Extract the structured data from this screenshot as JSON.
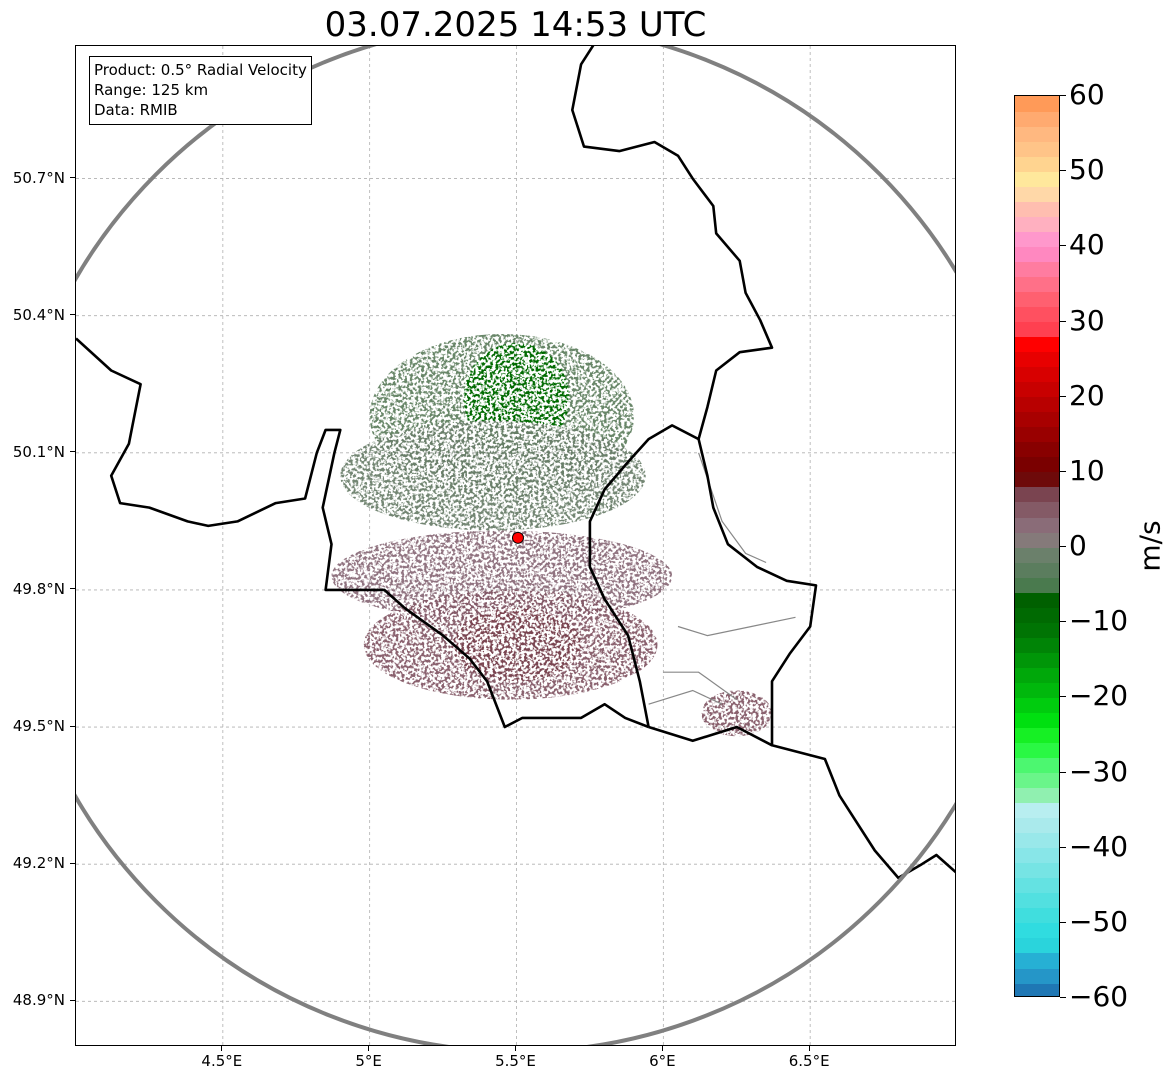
{
  "title": "03.07.2025 14:53 UTC",
  "info_box": {
    "product": "Product: 0.5° Radial Velocity",
    "range": "Range: 125 km",
    "data": "Data: RMIB"
  },
  "map": {
    "lon_range": [
      4.0,
      7.0
    ],
    "lat_range": [
      48.8,
      50.99
    ],
    "radar_site": {
      "lon": 5.505,
      "lat": 49.914
    },
    "range_ring_km": 125,
    "range_ring_color": "#808080",
    "site_marker_color": "#ff0000",
    "gridlines": true,
    "lat_ticks": [
      {
        "value": 50.7,
        "label": "50.7°N"
      },
      {
        "value": 50.4,
        "label": "50.4°N"
      },
      {
        "value": 50.1,
        "label": "50.1°N"
      },
      {
        "value": 49.8,
        "label": "49.8°N"
      },
      {
        "value": 49.5,
        "label": "49.5°N"
      },
      {
        "value": 49.2,
        "label": "49.2°N"
      },
      {
        "value": 48.9,
        "label": "48.9°N"
      }
    ],
    "lon_ticks": [
      {
        "value": 4.5,
        "label": "4.5°E"
      },
      {
        "value": 5.0,
        "label": "5°E"
      },
      {
        "value": 5.5,
        "label": "5.5°E"
      },
      {
        "value": 6.0,
        "label": "6°E"
      },
      {
        "value": 6.5,
        "label": "6.5°E"
      }
    ],
    "borders": [
      [
        [
          4.0,
          50.35
        ],
        [
          4.12,
          50.28
        ],
        [
          4.22,
          50.25
        ],
        [
          4.18,
          50.12
        ],
        [
          4.12,
          50.05
        ],
        [
          4.15,
          49.99
        ],
        [
          4.25,
          49.98
        ],
        [
          4.38,
          49.95
        ],
        [
          4.45,
          49.94
        ],
        [
          4.55,
          49.95
        ],
        [
          4.68,
          49.99
        ],
        [
          4.78,
          50.0
        ],
        [
          4.82,
          50.1
        ],
        [
          4.85,
          50.15
        ],
        [
          4.9,
          50.15
        ],
        [
          4.88,
          50.1
        ],
        [
          4.84,
          49.98
        ],
        [
          4.87,
          49.9
        ],
        [
          4.85,
          49.8
        ],
        [
          4.95,
          49.8
        ],
        [
          5.05,
          49.8
        ],
        [
          5.12,
          49.76
        ],
        [
          5.25,
          49.7
        ],
        [
          5.34,
          49.65
        ],
        [
          5.4,
          49.6
        ],
        [
          5.46,
          49.5
        ],
        [
          5.52,
          49.52
        ],
        [
          5.6,
          49.52
        ],
        [
          5.72,
          49.52
        ],
        [
          5.8,
          49.55
        ],
        [
          5.87,
          49.52
        ],
        [
          5.95,
          49.5
        ]
      ],
      [
        [
          5.95,
          49.5
        ],
        [
          5.92,
          49.6
        ],
        [
          5.88,
          49.7
        ],
        [
          5.8,
          49.78
        ],
        [
          5.75,
          49.85
        ],
        [
          5.75,
          49.95
        ],
        [
          5.8,
          50.02
        ],
        [
          5.88,
          50.08
        ],
        [
          5.95,
          50.13
        ],
        [
          6.03,
          50.16
        ],
        [
          6.12,
          50.13
        ],
        [
          6.15,
          50.2
        ],
        [
          6.18,
          50.28
        ],
        [
          6.26,
          50.32
        ],
        [
          6.37,
          50.33
        ],
        [
          6.33,
          50.39
        ],
        [
          6.28,
          50.45
        ],
        [
          6.26,
          50.52
        ],
        [
          6.18,
          50.58
        ],
        [
          6.17,
          50.64
        ],
        [
          6.1,
          50.7
        ],
        [
          6.05,
          50.75
        ],
        [
          5.97,
          50.78
        ],
        [
          5.85,
          50.76
        ],
        [
          5.73,
          50.77
        ],
        [
          5.69,
          50.85
        ],
        [
          5.72,
          50.95
        ],
        [
          5.77,
          51.0
        ]
      ],
      [
        [
          6.12,
          50.13
        ],
        [
          6.15,
          50.05
        ],
        [
          6.17,
          49.98
        ],
        [
          6.22,
          49.9
        ],
        [
          6.32,
          49.85
        ],
        [
          6.42,
          49.82
        ],
        [
          6.52,
          49.81
        ],
        [
          6.5,
          49.72
        ],
        [
          6.43,
          49.66
        ],
        [
          6.37,
          49.6
        ],
        [
          6.37,
          49.46
        ],
        [
          6.55,
          49.43
        ],
        [
          6.6,
          49.35
        ],
        [
          6.72,
          49.23
        ],
        [
          6.8,
          49.17
        ],
        [
          6.88,
          49.2
        ],
        [
          6.93,
          49.22
        ],
        [
          7.0,
          49.18
        ]
      ],
      [
        [
          6.37,
          49.46
        ],
        [
          6.25,
          49.5
        ],
        [
          6.1,
          49.47
        ],
        [
          5.95,
          49.5
        ]
      ]
    ],
    "sub_borders": [
      [
        [
          6.12,
          50.1
        ],
        [
          6.2,
          49.95
        ],
        [
          6.28,
          49.88
        ],
        [
          6.35,
          49.86
        ]
      ],
      [
        [
          6.05,
          49.72
        ],
        [
          6.15,
          49.7
        ],
        [
          6.3,
          49.72
        ],
        [
          6.45,
          49.74
        ]
      ],
      [
        [
          6.0,
          49.62
        ],
        [
          6.12,
          49.62
        ],
        [
          6.25,
          49.56
        ]
      ],
      [
        [
          5.95,
          49.55
        ],
        [
          6.1,
          49.58
        ],
        [
          6.2,
          49.55
        ]
      ]
    ]
  },
  "colorbar": {
    "label": "m/s",
    "vmin": -60,
    "vmax": 60,
    "ticks": [
      "60",
      "50",
      "40",
      "30",
      "20",
      "10",
      "0",
      "−10",
      "−20",
      "−30",
      "−40",
      "−50",
      "−60"
    ],
    "tick_values": [
      60,
      50,
      40,
      30,
      20,
      10,
      0,
      -10,
      -20,
      -30,
      -40,
      -50,
      -60
    ],
    "colors": [
      {
        "from": -60,
        "to": -58,
        "color": "#1f77b4"
      },
      {
        "from": -58,
        "to": -56,
        "color": "#2596c8"
      },
      {
        "from": -56,
        "to": -54,
        "color": "#26b0d4"
      },
      {
        "from": -54,
        "to": -52,
        "color": "#2ad4dc"
      },
      {
        "from": -52,
        "to": -50,
        "color": "#30dce0"
      },
      {
        "from": -50,
        "to": -48,
        "color": "#40dede"
      },
      {
        "from": -48,
        "to": -46,
        "color": "#52e0e0"
      },
      {
        "from": -46,
        "to": -44,
        "color": "#64e2e2"
      },
      {
        "from": -44,
        "to": -42,
        "color": "#76e4e4"
      },
      {
        "from": -42,
        "to": -40,
        "color": "#88e6e8"
      },
      {
        "from": -40,
        "to": -38,
        "color": "#99e8ea"
      },
      {
        "from": -38,
        "to": -36,
        "color": "#aaeaec"
      },
      {
        "from": -36,
        "to": -34,
        "color": "#b8eef0"
      },
      {
        "from": -34,
        "to": -32,
        "color": "#90f0b0"
      },
      {
        "from": -32,
        "to": -30,
        "color": "#6af58a"
      },
      {
        "from": -30,
        "to": -28,
        "color": "#4cf770"
      },
      {
        "from": -28,
        "to": -26,
        "color": "#2af844"
      },
      {
        "from": -26,
        "to": -24,
        "color": "#16f024"
      },
      {
        "from": -24,
        "to": -22,
        "color": "#00e010"
      },
      {
        "from": -22,
        "to": -20,
        "color": "#00cc0e"
      },
      {
        "from": -20,
        "to": -18,
        "color": "#00b80c"
      },
      {
        "from": -18,
        "to": -16,
        "color": "#00a80a"
      },
      {
        "from": -16,
        "to": -14,
        "color": "#009608"
      },
      {
        "from": -14,
        "to": -12,
        "color": "#008406"
      },
      {
        "from": -12,
        "to": -10,
        "color": "#007404"
      },
      {
        "from": -10,
        "to": -8,
        "color": "#006a02"
      },
      {
        "from": -8,
        "to": -6,
        "color": "#006000"
      },
      {
        "from": -6,
        "to": -4,
        "color": "#4a7a4e"
      },
      {
        "from": -4,
        "to": -2,
        "color": "#5b7d5e"
      },
      {
        "from": -2,
        "to": 0,
        "color": "#6b806b"
      },
      {
        "from": 0,
        "to": 2,
        "color": "#857a7a"
      },
      {
        "from": 2,
        "to": 4,
        "color": "#8a6c78"
      },
      {
        "from": 4,
        "to": 6,
        "color": "#845a66"
      },
      {
        "from": 6,
        "to": 8,
        "color": "#7a4450"
      },
      {
        "from": 8,
        "to": 10,
        "color": "#6e0a0a"
      },
      {
        "from": 10,
        "to": 12,
        "color": "#7a0000"
      },
      {
        "from": 12,
        "to": 14,
        "color": "#880000"
      },
      {
        "from": 14,
        "to": 16,
        "color": "#990000"
      },
      {
        "from": 16,
        "to": 18,
        "color": "#a80000"
      },
      {
        "from": 18,
        "to": 20,
        "color": "#b80000"
      },
      {
        "from": 20,
        "to": 22,
        "color": "#c80000"
      },
      {
        "from": 22,
        "to": 24,
        "color": "#d80000"
      },
      {
        "from": 24,
        "to": 26,
        "color": "#e80000"
      },
      {
        "from": 26,
        "to": 28,
        "color": "#ff0000"
      },
      {
        "from": 28,
        "to": 30,
        "color": "#ff4050"
      },
      {
        "from": 30,
        "to": 32,
        "color": "#ff5060"
      },
      {
        "from": 32,
        "to": 34,
        "color": "#ff6070"
      },
      {
        "from": 34,
        "to": 36,
        "color": "#ff7088"
      },
      {
        "from": 36,
        "to": 38,
        "color": "#ff7ca0"
      },
      {
        "from": 38,
        "to": 40,
        "color": "#ff88c0"
      },
      {
        "from": 40,
        "to": 42,
        "color": "#ff98cc"
      },
      {
        "from": 42,
        "to": 44,
        "color": "#ffb0c0"
      },
      {
        "from": 44,
        "to": 46,
        "color": "#ffbeb0"
      },
      {
        "from": 46,
        "to": 48,
        "color": "#ffd8a8"
      },
      {
        "from": 48,
        "to": 50,
        "color": "#ffe89c"
      },
      {
        "from": 50,
        "to": 52,
        "color": "#ffd490"
      },
      {
        "from": 52,
        "to": 54,
        "color": "#ffc488"
      },
      {
        "from": 54,
        "to": 56,
        "color": "#ffb880"
      },
      {
        "from": 56,
        "to": 58,
        "color": "#ffaa70"
      },
      {
        "from": 58,
        "to": 60,
        "color": "#ff9a58"
      }
    ]
  },
  "echo_regions": [
    {
      "lon": 5.45,
      "lat": 50.18,
      "rx": 0.45,
      "ry": 0.18,
      "color": "#5f7f5f"
    },
    {
      "lon": 5.5,
      "lat": 50.22,
      "rx": 0.18,
      "ry": 0.12,
      "color": "#006a02"
    },
    {
      "lon": 5.42,
      "lat": 50.05,
      "rx": 0.52,
      "ry": 0.12,
      "color": "#6b806b"
    },
    {
      "lon": 5.45,
      "lat": 49.83,
      "rx": 0.58,
      "ry": 0.1,
      "color": "#8a6c78"
    },
    {
      "lon": 5.48,
      "lat": 49.68,
      "rx": 0.5,
      "ry": 0.12,
      "color": "#845a66"
    },
    {
      "lon": 5.5,
      "lat": 49.68,
      "rx": 0.22,
      "ry": 0.08,
      "color": "#7a4450"
    },
    {
      "lon": 6.25,
      "lat": 49.53,
      "rx": 0.12,
      "ry": 0.05,
      "color": "#845a66"
    }
  ]
}
